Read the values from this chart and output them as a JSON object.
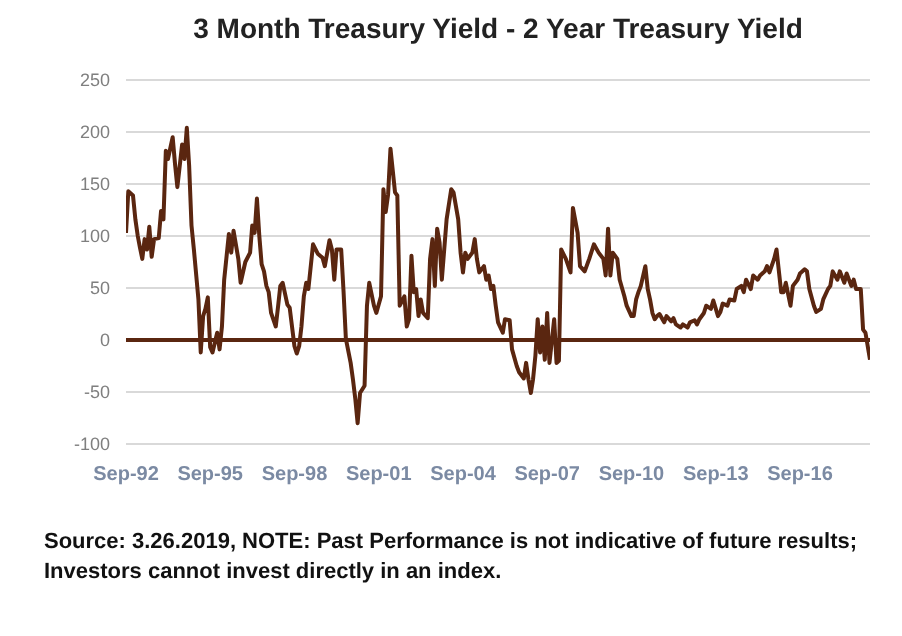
{
  "chart_data": {
    "type": "line",
    "title": "3 Month Treasury Yield - 2 Year Treasury Yield",
    "x": [
      "1992-09",
      "1992-10",
      "1992-12",
      "1993-01",
      "1993-02",
      "1993-03",
      "1993-04",
      "1993-05",
      "1993-06",
      "1993-07",
      "1993-08",
      "1993-09",
      "1993-11",
      "1993-12",
      "1994-01",
      "1994-02",
      "1994-03",
      "1994-05",
      "1994-06",
      "1994-07",
      "1994-09",
      "1994-10",
      "1994-11",
      "1994-12",
      "1995-01",
      "1995-02",
      "1995-04",
      "1995-05",
      "1995-06",
      "1995-07",
      "1995-08",
      "1995-09",
      "1995-10",
      "1995-12",
      "1996-01",
      "1996-02",
      "1996-03",
      "1996-05",
      "1996-06",
      "1996-07",
      "1996-09",
      "1996-10",
      "1996-12",
      "1997-02",
      "1997-03",
      "1997-04",
      "1997-05",
      "1997-06",
      "1997-07",
      "1997-08",
      "1997-09",
      "1997-10",
      "1997-11",
      "1998-01",
      "1998-02",
      "1998-03",
      "1998-04",
      "1998-06",
      "1998-07",
      "1998-09",
      "1998-10",
      "1998-11",
      "1998-12",
      "1999-01",
      "1999-02",
      "1999-03",
      "1999-05",
      "1999-07",
      "1999-09",
      "1999-10",
      "1999-12",
      "2000-01",
      "2000-02",
      "2000-03",
      "2000-05",
      "2000-06",
      "2000-07",
      "2000-09",
      "2000-10",
      "2000-11",
      "2000-12",
      "2001-01",
      "2001-03",
      "2001-04",
      "2001-05",
      "2001-07",
      "2001-08",
      "2001-10",
      "2001-11",
      "2001-12",
      "2002-01",
      "2002-02",
      "2002-04",
      "2002-05",
      "2002-06",
      "2002-08",
      "2002-09",
      "2002-10",
      "2002-11",
      "2002-12",
      "2003-01",
      "2003-02",
      "2003-03",
      "2003-04",
      "2003-06",
      "2003-07",
      "2003-08",
      "2003-09",
      "2003-10",
      "2003-11",
      "2003-12",
      "2004-02",
      "2004-04",
      "2004-05",
      "2004-07",
      "2004-08",
      "2004-09",
      "2004-10",
      "2004-11",
      "2005-01",
      "2005-02",
      "2005-03",
      "2005-04",
      "2005-06",
      "2005-07",
      "2005-08",
      "2005-09",
      "2005-10",
      "2005-11",
      "2005-12",
      "2006-02",
      "2006-03",
      "2006-05",
      "2006-06",
      "2006-08",
      "2006-09",
      "2006-11",
      "2006-12",
      "2007-01",
      "2007-02",
      "2007-03",
      "2007-04",
      "2007-05",
      "2007-06",
      "2007-07",
      "2007-08",
      "2007-09",
      "2007-10",
      "2007-12",
      "2008-01",
      "2008-02",
      "2008-03",
      "2008-05",
      "2008-07",
      "2008-08",
      "2008-10",
      "2008-11",
      "2009-01",
      "2009-03",
      "2009-05",
      "2009-07",
      "2009-09",
      "2009-10",
      "2009-11",
      "2009-12",
      "2010-01",
      "2010-03",
      "2010-04",
      "2010-06",
      "2010-07",
      "2010-09",
      "2010-10",
      "2010-11",
      "2010-12",
      "2011-01",
      "2011-03",
      "2011-04",
      "2011-05",
      "2011-06",
      "2011-07",
      "2011-08",
      "2011-09",
      "2011-11",
      "2011-12",
      "2012-02",
      "2012-03",
      "2012-04",
      "2012-06",
      "2012-07",
      "2012-09",
      "2012-10",
      "2012-12",
      "2013-01",
      "2013-02",
      "2013-04",
      "2013-05",
      "2013-07",
      "2013-08",
      "2013-10",
      "2013-11",
      "2013-12",
      "2014-02",
      "2014-03",
      "2014-05",
      "2014-06",
      "2014-08",
      "2014-09",
      "2014-10",
      "2014-12",
      "2015-01",
      "2015-03",
      "2015-04",
      "2015-06",
      "2015-07",
      "2015-08",
      "2015-10",
      "2015-11",
      "2016-01",
      "2016-02",
      "2016-03",
      "2016-05",
      "2016-06",
      "2016-08",
      "2016-09",
      "2016-11",
      "2016-12",
      "2017-01",
      "2017-03",
      "2017-04",
      "2017-06",
      "2017-07",
      "2017-09",
      "2017-10",
      "2017-11",
      "2018-01",
      "2018-02",
      "2018-04",
      "2018-05",
      "2018-07",
      "2018-08",
      "2018-09",
      "2018-11",
      "2018-12",
      "2019-01",
      "2019-03"
    ],
    "series": [
      {
        "color": "#5a2610",
        "values": [
          103,
          143,
          139,
          116,
          100,
          89,
          78,
          97,
          87,
          109,
          80,
          97,
          98,
          124,
          116,
          182,
          174,
          195,
          169,
          147,
          188,
          174,
          204,
          168,
          110,
          87,
          39,
          -12,
          23,
          30,
          41,
          -7,
          -12,
          7,
          -9,
          13,
          58,
          102,
          84,
          105,
          78,
          55,
          75,
          84,
          110,
          103,
          136,
          100,
          73,
          66,
          52,
          46,
          26,
          13,
          33,
          52,
          55,
          34,
          31,
          -6,
          -13,
          -6,
          13,
          42,
          55,
          49,
          92,
          83,
          79,
          71,
          96,
          87,
          58,
          87,
          87,
          46,
          1,
          -22,
          -38,
          -57,
          -80,
          -51,
          -44,
          33,
          55,
          33,
          26,
          42,
          145,
          123,
          140,
          184,
          142,
          139,
          33,
          42,
          13,
          20,
          81,
          46,
          49,
          23,
          39,
          26,
          21,
          78,
          97,
          52,
          107,
          94,
          58,
          116,
          145,
          142,
          116,
          84,
          65,
          84,
          78,
          84,
          97,
          78,
          65,
          71,
          58,
          62,
          49,
          52,
          33,
          17,
          7,
          20,
          19,
          -9,
          -25,
          -31,
          -37,
          -22,
          -38,
          -51,
          -38,
          -15,
          20,
          -12,
          13,
          -19,
          26,
          -22,
          20,
          -22,
          -20,
          87,
          78,
          65,
          127,
          103,
          71,
          66,
          78,
          92,
          84,
          78,
          62,
          107,
          62,
          84,
          78,
          58,
          42,
          33,
          23,
          23,
          39,
          46,
          52,
          71,
          49,
          39,
          26,
          20,
          23,
          25,
          17,
          23,
          18,
          21,
          15,
          12,
          15,
          12,
          17,
          19,
          15,
          20,
          26,
          33,
          30,
          38,
          23,
          27,
          35,
          33,
          39,
          38,
          49,
          52,
          46,
          58,
          49,
          62,
          58,
          62,
          66,
          71,
          65,
          78,
          87,
          46,
          46,
          55,
          33,
          52,
          58,
          64,
          68,
          66,
          49,
          33,
          27,
          30,
          39,
          49,
          52,
          66,
          58,
          66,
          55,
          64,
          52,
          58,
          49,
          49,
          10,
          7,
          -19
        ]
      }
    ],
    "xlim": [
      "1992-09",
      "2019-03"
    ],
    "xticks": [
      {
        "value": "1992-09",
        "label": "Sep-92"
      },
      {
        "value": "1995-09",
        "label": "Sep-95"
      },
      {
        "value": "1998-09",
        "label": "Sep-98"
      },
      {
        "value": "2001-09",
        "label": "Sep-01"
      },
      {
        "value": "2004-09",
        "label": "Sep-04"
      },
      {
        "value": "2007-09",
        "label": "Sep-07"
      },
      {
        "value": "2010-09",
        "label": "Sep-10"
      },
      {
        "value": "2013-09",
        "label": "Sep-13"
      },
      {
        "value": "2016-09",
        "label": "Sep-16"
      }
    ],
    "ylim": [
      -100,
      250
    ],
    "yticks": [
      -100,
      -50,
      0,
      50,
      100,
      150,
      200,
      250
    ],
    "grid": "y",
    "ref_lines": [
      {
        "axis": "y",
        "value": 0,
        "color": "#5a2610"
      }
    ],
    "annotations": [
      "Source: 3.26.2019, NOTE: Past Performance is not indicative of future results; Investors cannot invest directly in an index."
    ]
  }
}
